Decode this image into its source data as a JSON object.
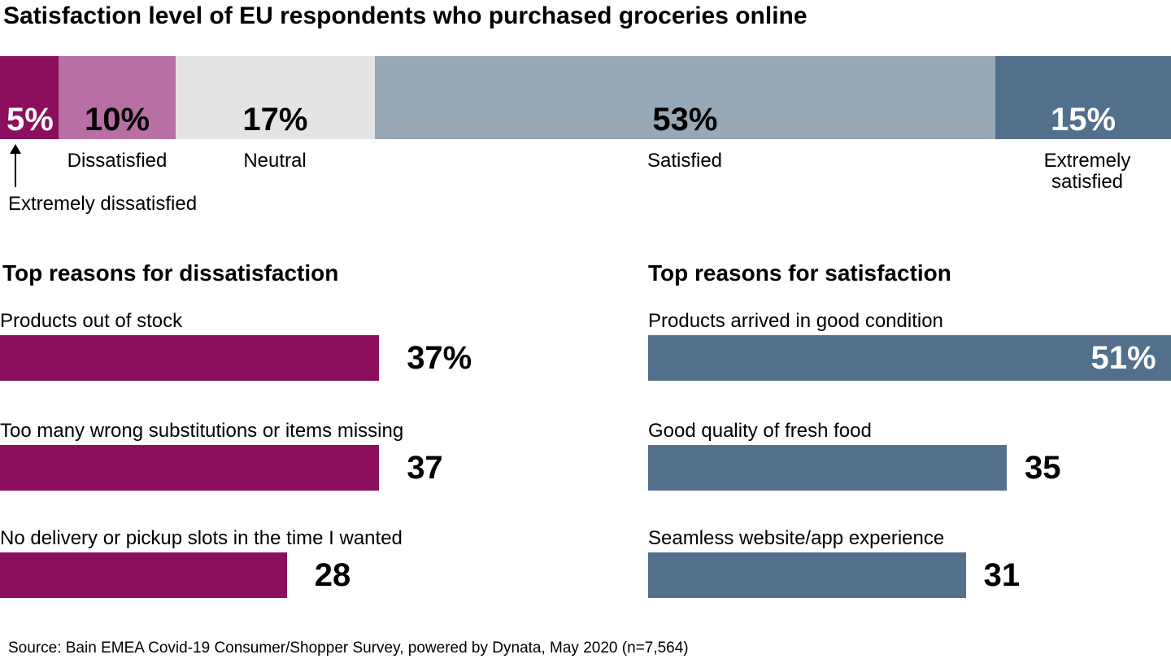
{
  "title": "Satisfaction level of EU respondents who purchased groceries online",
  "source": "Source: Bain EMEA Covid-19 Consumer/Shopper Survey, powered by Dynata, May 2020 (n=7,564)",
  "colors": {
    "extremely_dissatisfied": "#8B0F5C",
    "dissatisfied": "#B86FA3",
    "neutral": "#E4E4E4",
    "satisfied": "#97A9B6",
    "extremely_satisfied": "#52708B",
    "text_dark": "#000000",
    "text_light": "#FFFFFF"
  },
  "chart_data": [
    {
      "type": "bar",
      "subtype": "stacked-horizontal",
      "title": "Satisfaction level of EU respondents who purchased groceries online",
      "unit": "%",
      "xlim": [
        0,
        100
      ],
      "segments": [
        {
          "label": "Extremely dissatisfied",
          "value": 5,
          "value_label": "5%",
          "color": "#8B0F5C",
          "text_color": "#FFFFFF"
        },
        {
          "label": "Dissatisfied",
          "value": 10,
          "value_label": "10%",
          "color": "#B86FA3",
          "text_color": "#000000"
        },
        {
          "label": "Neutral",
          "value": 17,
          "value_label": "17%",
          "color": "#E4E4E4",
          "text_color": "#000000"
        },
        {
          "label": "Satisfied",
          "value": 53,
          "value_label": "53%",
          "color": "#97A9B6",
          "text_color": "#000000"
        },
        {
          "label": "Extremely satisfied",
          "value": 15,
          "value_label": "15%",
          "color": "#52708B",
          "text_color": "#FFFFFF"
        }
      ]
    },
    {
      "type": "bar",
      "subtype": "horizontal",
      "title": "Top reasons for dissatisfaction",
      "color": "#8B0F5C",
      "unit": "%",
      "rows": [
        {
          "label": "Products out of stock",
          "value": 37,
          "value_label": "37%"
        },
        {
          "label": "Too many wrong substitutions or items missing",
          "value": 37,
          "value_label": "37"
        },
        {
          "label": "No delivery or pickup slots in the time I wanted",
          "value": 28,
          "value_label": "28"
        }
      ]
    },
    {
      "type": "bar",
      "subtype": "horizontal",
      "title": "Top reasons for satisfaction",
      "color": "#52708B",
      "unit": "%",
      "rows": [
        {
          "label": "Products arrived in good condition",
          "value": 51,
          "value_label": "51%"
        },
        {
          "label": "Good quality of fresh food",
          "value": 35,
          "value_label": "35"
        },
        {
          "label": "Seamless website/app experience",
          "value": 31,
          "value_label": "31"
        }
      ]
    }
  ]
}
